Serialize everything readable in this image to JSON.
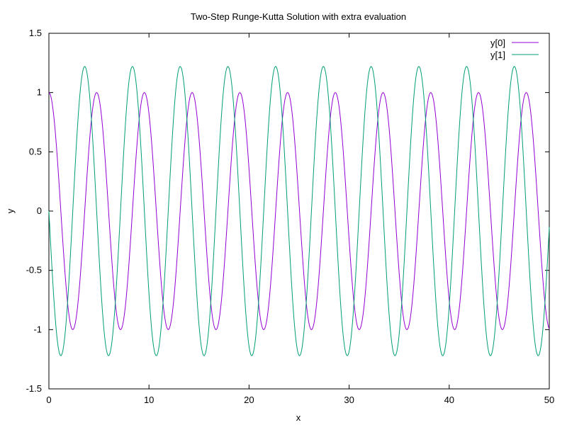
{
  "chart_data": {
    "type": "line",
    "title": "Two-Step Runge-Kutta Solution with extra evaluation",
    "xlabel": "x",
    "ylabel": "y",
    "xlim": [
      0,
      50
    ],
    "ylim": [
      -1.5,
      1.5
    ],
    "x_ticks": [
      0,
      10,
      20,
      30,
      40,
      50
    ],
    "y_ticks": [
      -1.5,
      -1,
      -0.5,
      0,
      0.5,
      1,
      1.5
    ],
    "x_tick_labels": [
      "0",
      "10",
      "20",
      "30",
      "40",
      "50"
    ],
    "y_tick_labels": [
      "-1.5",
      "-1",
      "-0.5",
      "0",
      "0.5",
      "1",
      "1.5"
    ],
    "grid": false,
    "legend_position": "top-right",
    "series": [
      {
        "name": "y[0]",
        "color": "#9400d3",
        "model": "cosine",
        "amplitude": 1.0,
        "period": 4.77,
        "phase": 0,
        "x_start": 0,
        "x_end": 50,
        "samples": 1000
      },
      {
        "name": "y[1]",
        "color": "#009e73",
        "model": "negative-sine",
        "amplitude": 1.22,
        "period": 4.77,
        "phase": 0,
        "x_start": 0,
        "x_end": 50,
        "samples": 1000
      }
    ]
  }
}
